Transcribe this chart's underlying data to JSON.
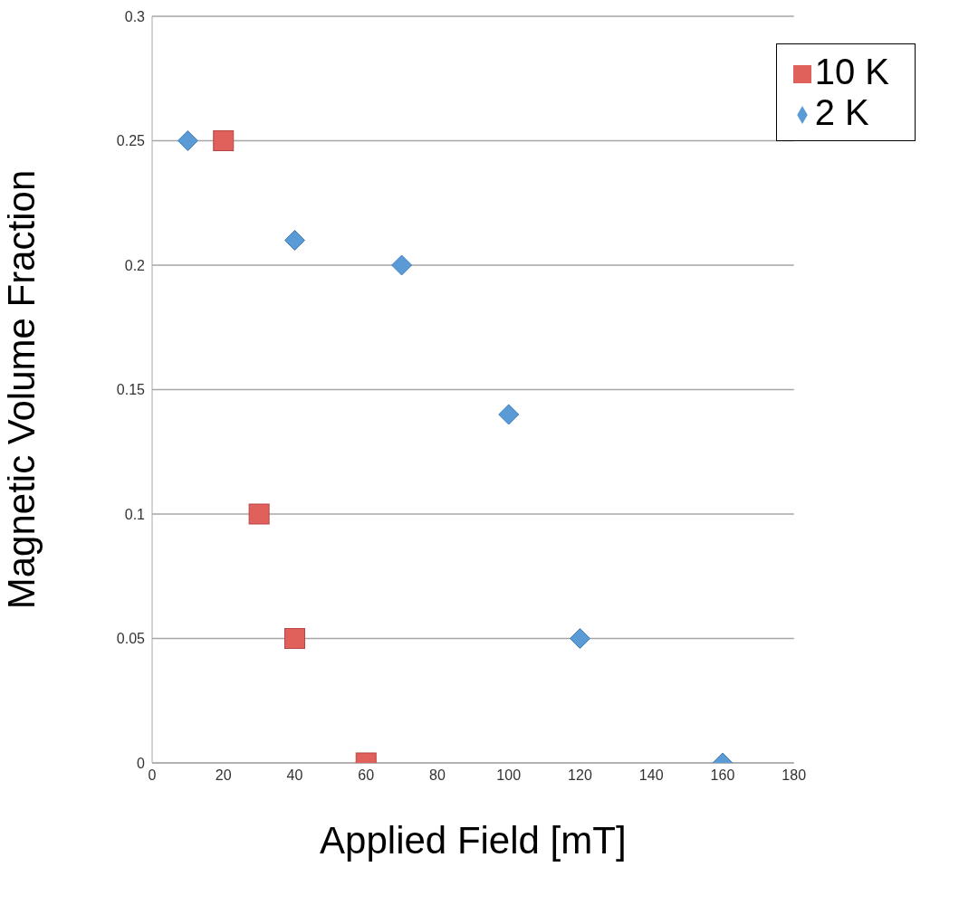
{
  "chart_data": {
    "type": "scatter",
    "xlabel": "Applied Field [mT]",
    "ylabel": "Magnetic Volume Fraction",
    "xlim": [
      0,
      180
    ],
    "xticks": [
      0,
      20,
      40,
      60,
      80,
      100,
      120,
      140,
      160,
      180
    ],
    "ylim": [
      0,
      0.3
    ],
    "yticks": [
      0,
      0.05,
      0.1,
      0.15,
      0.2,
      0.25,
      0.3
    ],
    "grid": "y",
    "legend": "top right",
    "series": [
      {
        "name": "2 K",
        "color": "#5b9bd5",
        "marker": "diamond",
        "x": [
          10,
          40,
          70,
          100,
          120,
          160
        ],
        "values": [
          0.25,
          0.21,
          0.2,
          0.14,
          0.05,
          0
        ]
      },
      {
        "name": "10 K",
        "color": "#e0605c",
        "marker": "square",
        "x": [
          20,
          30,
          40,
          60
        ],
        "values": [
          0.25,
          0.1,
          0.05,
          0
        ]
      }
    ]
  }
}
